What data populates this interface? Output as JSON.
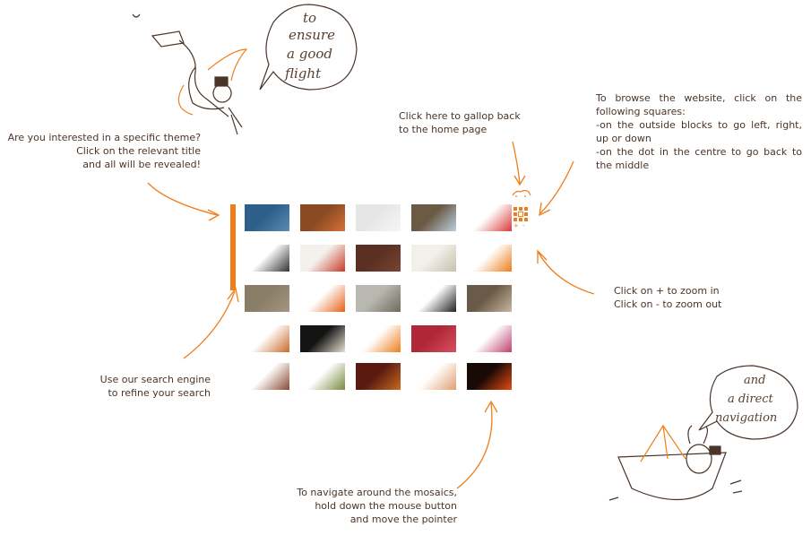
{
  "annotations": {
    "theme": [
      "Are you interested in a specific theme?",
      "Click on the relevant title",
      "and all will be revealed!"
    ],
    "home": [
      "Click here to gallop back",
      "to the home page"
    ],
    "browse": [
      "To browse the website, click on the",
      "following squares:",
      "-on the outside blocks to go left, right,",
      "up or down",
      "-on the dot in the centre to go back to",
      "the middle"
    ],
    "zoom": [
      "Click on + to zoom in",
      "Click on - to zoom out"
    ],
    "search": [
      "Use our search engine",
      "to refine your search"
    ],
    "navigate": [
      "To navigate around the mosaics,",
      "hold down the mouse button",
      "and move the pointer"
    ]
  },
  "speech_bubbles": {
    "flight": [
      "to",
      "ensure",
      "a good",
      "flight"
    ],
    "navigation": [
      "and",
      "a direct",
      "navigation"
    ]
  },
  "nav_widget": {
    "zoom_in": "+",
    "zoom_out": "-"
  },
  "colors": {
    "accent": "#ef7d1a",
    "text": "#4a3528"
  },
  "mosaic": {
    "tiles": [
      {
        "name": "blue-fabric-thumb",
        "c1": "#2d5f8a",
        "c2": "#5a8bb5"
      },
      {
        "name": "orange-leather-thumb",
        "c1": "#8a4a22",
        "c2": "#d6703a"
      },
      {
        "name": "sketch-drawing-thumb",
        "c1": "#e6e6e6",
        "c2": "#f6f6f6"
      },
      {
        "name": "framed-painting-thumb",
        "c1": "#6b5a44",
        "c2": "#bcd0e0"
      },
      {
        "name": "scissors-crafts-thumb",
        "c1": "#ffffff",
        "c2": "#d93a3a"
      },
      {
        "name": "pattern-dots-thumb",
        "c1": "#ffffff",
        "c2": "#333333"
      },
      {
        "name": "apple-thumb",
        "c1": "#f4f1ec",
        "c2": "#c83a28"
      },
      {
        "name": "brown-box-thumb",
        "c1": "#5a3022",
        "c2": "#7a4432"
      },
      {
        "name": "pencil-sketch-thumb",
        "c1": "#f2f0ea",
        "c2": "#c8c0b0"
      },
      {
        "name": "orange-splash-thumb",
        "c1": "#ffffff",
        "c2": "#ef7d1a"
      },
      {
        "name": "linen-fabric-thumb",
        "c1": "#8a7d68",
        "c2": "#a49680"
      },
      {
        "name": "orange-bag-thumb",
        "c1": "#ffffff",
        "c2": "#e8601a"
      },
      {
        "name": "winter-forest-thumb",
        "c1": "#b8b8b0",
        "c2": "#6e6a5e"
      },
      {
        "name": "mandala-thumb",
        "c1": "#ffffff",
        "c2": "#222222"
      },
      {
        "name": "craftsman-thumb",
        "c1": "#6a5a48",
        "c2": "#c8b8a0"
      },
      {
        "name": "shoes-row-thumb",
        "c1": "#ffffff",
        "c2": "#c86a2a"
      },
      {
        "name": "black-figure-thumb",
        "c1": "#141414",
        "c2": "#e8e0d0"
      },
      {
        "name": "orange-circle-thumb",
        "c1": "#ffffff",
        "c2": "#ef7d1a"
      },
      {
        "name": "red-mosaic-thumb",
        "c1": "#b02838",
        "c2": "#d85060"
      },
      {
        "name": "feathers-thumb",
        "c1": "#ffffff",
        "c2": "#c04070"
      },
      {
        "name": "saddle-thumb",
        "c1": "#ffffff",
        "c2": "#8a4a30"
      },
      {
        "name": "bottles-thumb",
        "c1": "#ffffff",
        "c2": "#7a8a40"
      },
      {
        "name": "red-interior-thumb",
        "c1": "#5a1a10",
        "c2": "#c86a20"
      },
      {
        "name": "small-ornament-thumb",
        "c1": "#ffffff",
        "c2": "#e0a070"
      },
      {
        "name": "orange-window-thumb",
        "c1": "#1a0a06",
        "c2": "#e84a10"
      }
    ]
  }
}
